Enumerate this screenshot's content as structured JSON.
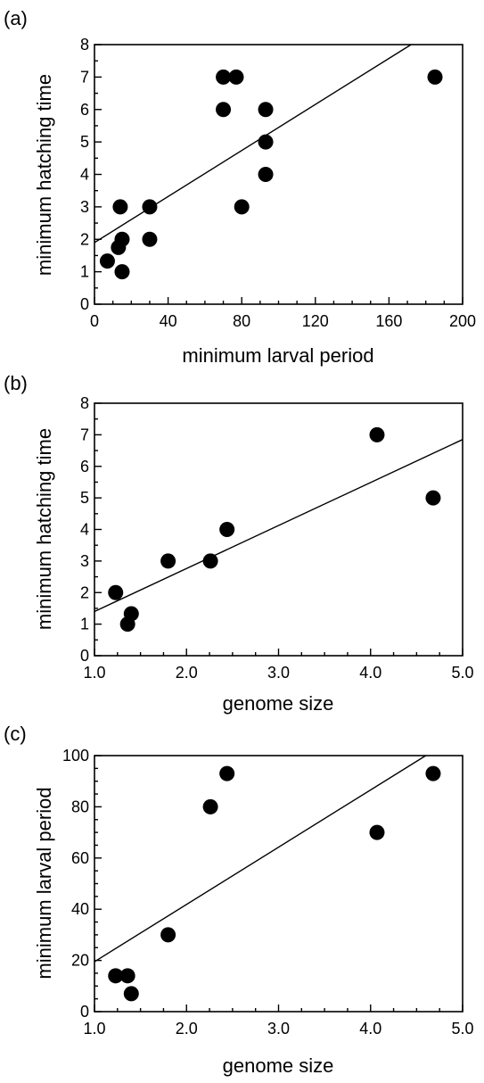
{
  "chart_data": [
    {
      "type": "scatter",
      "panel_label": "(a)",
      "xlabel": "minimum larval period",
      "ylabel": "minimum hatching time",
      "xlim": [
        0,
        200
      ],
      "ylim": [
        0,
        8
      ],
      "xticks": [
        0,
        40,
        80,
        120,
        160,
        200
      ],
      "yticks": [
        0,
        1,
        2,
        3,
        4,
        5,
        6,
        7,
        8
      ],
      "x_minor_step": 10,
      "y_minor_step": 0.5,
      "points": [
        {
          "x": 7,
          "y": 1.33
        },
        {
          "x": 13,
          "y": 1.75
        },
        {
          "x": 14,
          "y": 3
        },
        {
          "x": 15,
          "y": 2
        },
        {
          "x": 15,
          "y": 1
        },
        {
          "x": 30,
          "y": 3
        },
        {
          "x": 30,
          "y": 2
        },
        {
          "x": 70,
          "y": 7
        },
        {
          "x": 70,
          "y": 6
        },
        {
          "x": 77,
          "y": 7
        },
        {
          "x": 80,
          "y": 3
        },
        {
          "x": 93,
          "y": 6
        },
        {
          "x": 93,
          "y": 5
        },
        {
          "x": 93,
          "y": 4
        },
        {
          "x": 185,
          "y": 7
        }
      ],
      "fit": {
        "x1": 0,
        "y1": 1.9,
        "x2": 172,
        "y2": 8
      }
    },
    {
      "type": "scatter",
      "panel_label": "(b)",
      "xlabel": "genome size",
      "ylabel": "minimum hatching time",
      "xlim": [
        1.0,
        5.0
      ],
      "ylim": [
        0,
        8
      ],
      "xticks": [
        "1.0",
        "2.0",
        "3.0",
        "4.0",
        "5.0"
      ],
      "yticks": [
        0,
        1,
        2,
        3,
        4,
        5,
        6,
        7,
        8
      ],
      "x_minor_step": 0.25,
      "y_minor_step": 0.5,
      "points": [
        {
          "x": 1.23,
          "y": 2
        },
        {
          "x": 1.36,
          "y": 1
        },
        {
          "x": 1.4,
          "y": 1.33
        },
        {
          "x": 1.8,
          "y": 3
        },
        {
          "x": 2.26,
          "y": 3
        },
        {
          "x": 2.44,
          "y": 4
        },
        {
          "x": 4.07,
          "y": 7
        },
        {
          "x": 4.68,
          "y": 5
        }
      ],
      "fit": {
        "x1": 1.0,
        "y1": 1.4,
        "x2": 5.0,
        "y2": 6.85
      }
    },
    {
      "type": "scatter",
      "panel_label": "(c)",
      "xlabel": "genome size",
      "ylabel": "minimum larval period",
      "xlim": [
        1.0,
        5.0
      ],
      "ylim": [
        0,
        100
      ],
      "xticks": [
        "1.0",
        "2.0",
        "3.0",
        "4.0",
        "5.0"
      ],
      "yticks": [
        0,
        20,
        40,
        60,
        80,
        100
      ],
      "x_minor_step": 0.25,
      "y_minor_step": 5,
      "points": [
        {
          "x": 1.23,
          "y": 14
        },
        {
          "x": 1.36,
          "y": 14
        },
        {
          "x": 1.4,
          "y": 7
        },
        {
          "x": 1.8,
          "y": 30
        },
        {
          "x": 2.26,
          "y": 80
        },
        {
          "x": 2.44,
          "y": 93
        },
        {
          "x": 4.07,
          "y": 70
        },
        {
          "x": 4.68,
          "y": 93
        }
      ],
      "fit": {
        "x1": 1.0,
        "y1": 19.5,
        "x2": 4.6,
        "y2": 100
      }
    }
  ]
}
